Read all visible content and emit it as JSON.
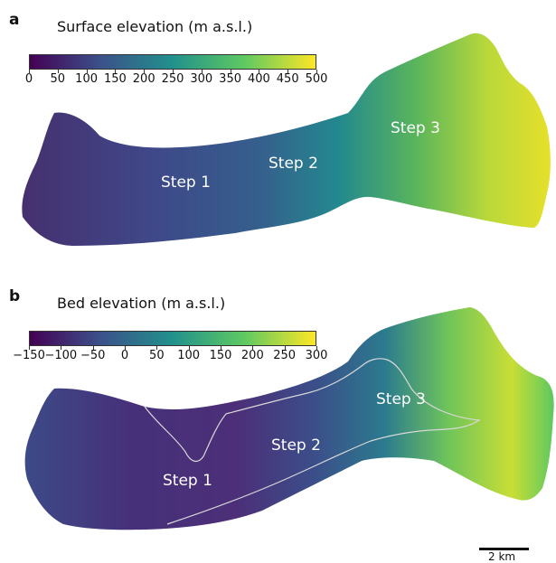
{
  "panels": [
    {
      "letter": "a",
      "title": "Surface elevation (m a.s.l.)",
      "colorbar": {
        "colors": [
          "#440154",
          "#3b528b",
          "#21918c",
          "#5ec962",
          "#fde725"
        ],
        "ticks": [
          "0",
          "50",
          "100",
          "150",
          "200",
          "250",
          "300",
          "350",
          "400",
          "450",
          "500"
        ]
      },
      "steps": [
        "Step 1",
        "Step 2",
        "Step 3"
      ]
    },
    {
      "letter": "b",
      "title": "Bed elevation (m a.s.l.)",
      "colorbar": {
        "colors": [
          "#440154",
          "#3b528b",
          "#21918c",
          "#5ec962",
          "#fde725"
        ],
        "ticks": [
          "−150",
          "−100",
          "−50",
          "0",
          "50",
          "100",
          "150",
          "200",
          "250",
          "300"
        ]
      },
      "steps": [
        "Step 1",
        "Step 2",
        "Step 3"
      ]
    }
  ],
  "scale_bar": {
    "label": "2 km"
  }
}
